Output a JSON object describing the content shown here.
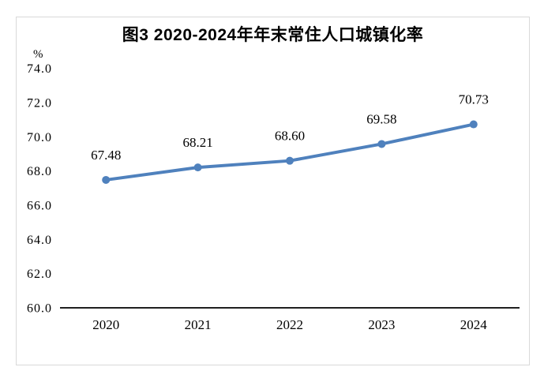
{
  "chart_data": {
    "type": "line",
    "title": "图3 2020-2024年年末常住人口城镇化率",
    "y_unit": "%",
    "categories": [
      "2020",
      "2021",
      "2022",
      "2023",
      "2024"
    ],
    "series": [
      {
        "values": [
          67.48,
          68.21,
          68.6,
          69.58,
          70.73
        ]
      }
    ],
    "data_labels": [
      "67.48",
      "68.21",
      "68.60",
      "69.58",
      "70.73"
    ],
    "y_tick_labels": [
      "60.0",
      "62.0",
      "64.0",
      "66.0",
      "68.0",
      "70.0",
      "72.0",
      "74.0"
    ],
    "ylim": [
      60,
      74
    ],
    "y_tick_step": 2,
    "grid": false,
    "legend_position": "none",
    "line_color": "#4F81BD",
    "axis_color": "#000000",
    "label_color": "#000000",
    "frame_border_color": "#D9D9D9",
    "background_color": "#FFFFFF"
  }
}
